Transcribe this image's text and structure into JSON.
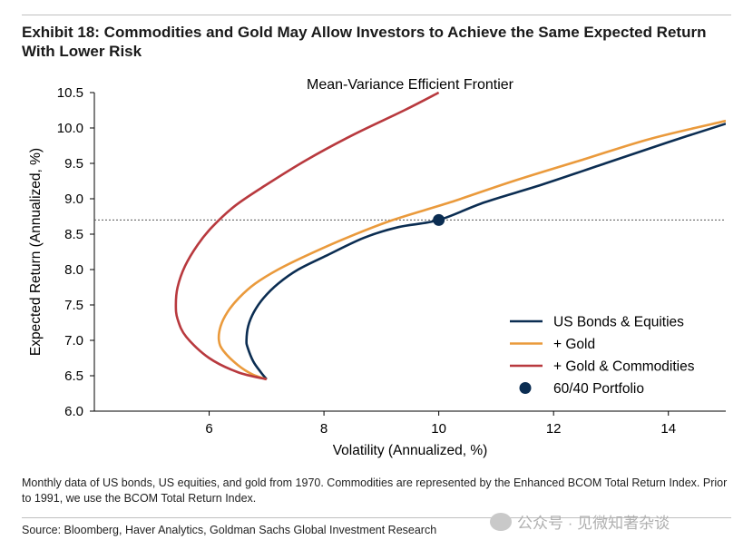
{
  "exhibit_title": "Exhibit 18: Commodities and Gold May Allow Investors to Achieve the Same Expected Return With Lower Risk",
  "footnote": "Monthly data of US bonds, US equities, and gold from 1970. Commodities are represented by the Enhanced BCOM Total Return Index. Prior to 1991, we use the BCOM Total Return Index.",
  "source": "Source: Bloomberg, Haver Analytics, Goldman Sachs Global Investment Research",
  "watermark": "公众号 · 见微知著杂谈",
  "colors": {
    "us_bonds_equities": "#0b2d52",
    "gold": "#ea9a3c",
    "gold_commodities": "#b8393e",
    "portfolio": "#0b2d52",
    "refline": "#555555"
  },
  "chart_data": {
    "type": "line",
    "title": "Mean-Variance Efficient Frontier",
    "xlabel": "Volatility (Annualized, %)",
    "ylabel": "Expected Return (Annualized, %)",
    "xlim": [
      4,
      15
    ],
    "ylim": [
      6.0,
      10.5
    ],
    "xticks": [
      6,
      8,
      10,
      12,
      14
    ],
    "yticks": [
      "6.0",
      "6.5",
      "7.0",
      "7.5",
      "8.0",
      "8.5",
      "9.0",
      "9.5",
      "10.0",
      "10.5"
    ],
    "legend_position": "bottom-right",
    "series": [
      {
        "name": "US Bonds & Equities",
        "color": "#0b2d52",
        "points": [
          [
            7.0,
            6.45
          ],
          [
            6.9,
            6.55
          ],
          [
            6.77,
            6.7
          ],
          [
            6.67,
            6.9
          ],
          [
            6.65,
            7.0
          ],
          [
            6.68,
            7.2
          ],
          [
            6.78,
            7.4
          ],
          [
            6.95,
            7.6
          ],
          [
            7.2,
            7.8
          ],
          [
            7.55,
            8.0
          ],
          [
            8.05,
            8.2
          ],
          [
            8.7,
            8.45
          ],
          [
            9.3,
            8.6
          ],
          [
            10.0,
            8.7
          ],
          [
            10.8,
            8.95
          ],
          [
            11.8,
            9.2
          ],
          [
            12.9,
            9.5
          ],
          [
            14.0,
            9.8
          ],
          [
            15.0,
            10.06
          ]
        ]
      },
      {
        "name": "+ Gold",
        "color": "#ea9a3c",
        "points": [
          [
            7.0,
            6.45
          ],
          [
            6.75,
            6.52
          ],
          [
            6.5,
            6.65
          ],
          [
            6.25,
            6.85
          ],
          [
            6.17,
            7.0
          ],
          [
            6.2,
            7.2
          ],
          [
            6.32,
            7.4
          ],
          [
            6.52,
            7.6
          ],
          [
            6.8,
            7.8
          ],
          [
            7.2,
            8.0
          ],
          [
            7.7,
            8.2
          ],
          [
            8.4,
            8.45
          ],
          [
            9.2,
            8.7
          ],
          [
            10.2,
            8.95
          ],
          [
            11.3,
            9.25
          ],
          [
            12.5,
            9.55
          ],
          [
            13.7,
            9.85
          ],
          [
            15.0,
            10.1
          ]
        ]
      },
      {
        "name": "+ Gold & Commodities",
        "color": "#b8393e",
        "points": [
          [
            7.0,
            6.45
          ],
          [
            6.5,
            6.55
          ],
          [
            6.0,
            6.75
          ],
          [
            5.6,
            7.05
          ],
          [
            5.45,
            7.3
          ],
          [
            5.42,
            7.5
          ],
          [
            5.45,
            7.75
          ],
          [
            5.58,
            8.05
          ],
          [
            5.8,
            8.35
          ],
          [
            6.05,
            8.6
          ],
          [
            6.45,
            8.9
          ],
          [
            7.0,
            9.2
          ],
          [
            7.7,
            9.55
          ],
          [
            8.5,
            9.9
          ],
          [
            9.4,
            10.25
          ],
          [
            10.0,
            10.5
          ]
        ]
      }
    ],
    "reference_line": {
      "y": 8.7,
      "style": "dotted"
    },
    "marker": {
      "name": "60/40 Portfolio",
      "x": 10.0,
      "y": 8.7
    }
  }
}
